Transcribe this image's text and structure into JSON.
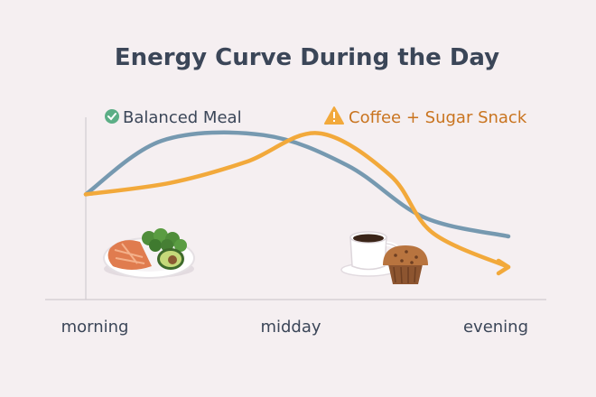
{
  "chart_data": {
    "type": "line",
    "title": "Energy Curve During the Day",
    "xlabel": "",
    "ylabel": "",
    "x_ticks": [
      "morning",
      "midday",
      "evening"
    ],
    "xlim": [
      0,
      1
    ],
    "ylim": [
      0,
      1
    ],
    "grid": false,
    "legend_position": "top",
    "series": [
      {
        "name": "Balanced Meal",
        "color": "#7699b0",
        "icon": "check-circle-icon",
        "icon_color": "#5cae86",
        "label_color": "#3b4658",
        "points": [
          [
            0.0,
            0.55
          ],
          [
            0.18,
            0.83
          ],
          [
            0.42,
            0.86
          ],
          [
            0.62,
            0.7
          ],
          [
            0.8,
            0.43
          ],
          [
            1.0,
            0.33
          ]
        ]
      },
      {
        "name": "Coffee + Sugar Snack",
        "color": "#f2a93b",
        "icon": "warning-icon",
        "icon_color": "#f2a93b",
        "label_color": "#c9741f",
        "points": [
          [
            0.0,
            0.55
          ],
          [
            0.2,
            0.61
          ],
          [
            0.38,
            0.72
          ],
          [
            0.55,
            0.87
          ],
          [
            0.72,
            0.65
          ],
          [
            0.82,
            0.35
          ],
          [
            1.0,
            0.17
          ]
        ]
      }
    ],
    "illustrations": [
      "salmon-broccoli-avocado-plate",
      "coffee-cup-and-muffin"
    ]
  }
}
